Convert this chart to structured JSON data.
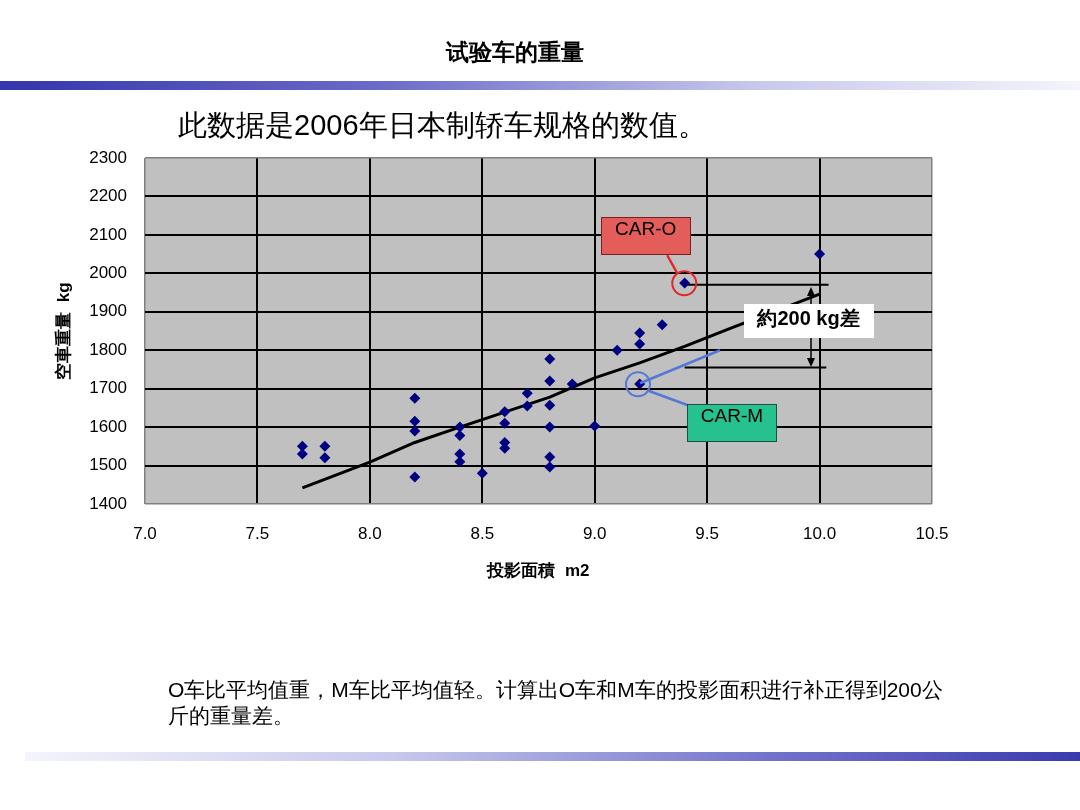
{
  "chart_data": {
    "type": "scatter",
    "title": "试验车的重量",
    "subtitle": "此数据是2006年日本制轿车规格的数值。",
    "xlabel": "投影面積  m2",
    "ylabel": "空車重量  kg",
    "series": [
      {
        "type": "scatter",
        "color": "#000080",
        "marker": "diamond",
        "x": [
          7.7,
          7.7,
          7.8,
          7.8,
          8.2,
          8.2,
          8.2,
          8.2,
          8.4,
          8.4,
          8.4,
          8.4,
          8.5,
          8.6,
          8.6,
          8.6,
          8.6,
          8.7,
          8.7,
          8.8,
          8.8,
          8.8,
          8.8,
          8.8,
          8.8,
          8.9,
          9.0,
          9.1,
          9.2,
          9.2,
          9.2,
          9.3,
          9.4,
          10.0
        ],
        "values": [
          1550,
          1530,
          1550,
          1520,
          1675,
          1615,
          1590,
          1470,
          1600,
          1578,
          1530,
          1510,
          1480,
          1640,
          1610,
          1560,
          1545,
          1688,
          1655,
          1777,
          1720,
          1657,
          1600,
          1522,
          1496,
          1712,
          1603,
          1800,
          1845,
          1816,
          1712,
          1866,
          1975,
          2050
        ]
      },
      {
        "type": "line",
        "color": "#000000",
        "marker": "none",
        "x": [
          7.7,
          8.0,
          8.2,
          8.4,
          8.6,
          8.8,
          9.0,
          9.2,
          9.4,
          9.6,
          10.0
        ],
        "values": [
          1442,
          1509,
          1560,
          1600,
          1639,
          1678,
          1728,
          1767,
          1810,
          1856,
          1946
        ]
      },
      {
        "type": "line",
        "color": "#000000",
        "marker": "none",
        "x": [
          9.4,
          10.04
        ],
        "values": [
          1970,
          1970
        ]
      },
      {
        "type": "line",
        "color": "#000000",
        "marker": "none",
        "x": [
          9.4,
          10.03
        ],
        "values": [
          1755,
          1755
        ]
      }
    ],
    "xlim": [
      7,
      10.5
    ],
    "xticks": [
      {
        "value": 7,
        "label": "7.0"
      },
      7.5,
      {
        "value": 8,
        "label": "8.0"
      },
      8.5,
      {
        "value": 9,
        "label": "9.0"
      },
      9.5,
      {
        "value": 10,
        "label": "10.0"
      },
      10.5
    ],
    "ylim": [
      1400,
      2300
    ],
    "yticks": [
      1400,
      1500,
      1600,
      1700,
      1800,
      1900,
      2000,
      2100,
      2200,
      2300
    ],
    "grid": true,
    "annotations": [
      {
        "text": "CAR-O",
        "x": 9.4,
        "y": 1975
      },
      "CAR-M",
      {
        "text": "約200 kg差",
        "x": 9.96,
        "y": 1970
      },
      "O车比平均值重，M车比平均值轻。计算出O车和M车的投影面积进行补正得到200公斤的重量差。"
    ]
  }
}
